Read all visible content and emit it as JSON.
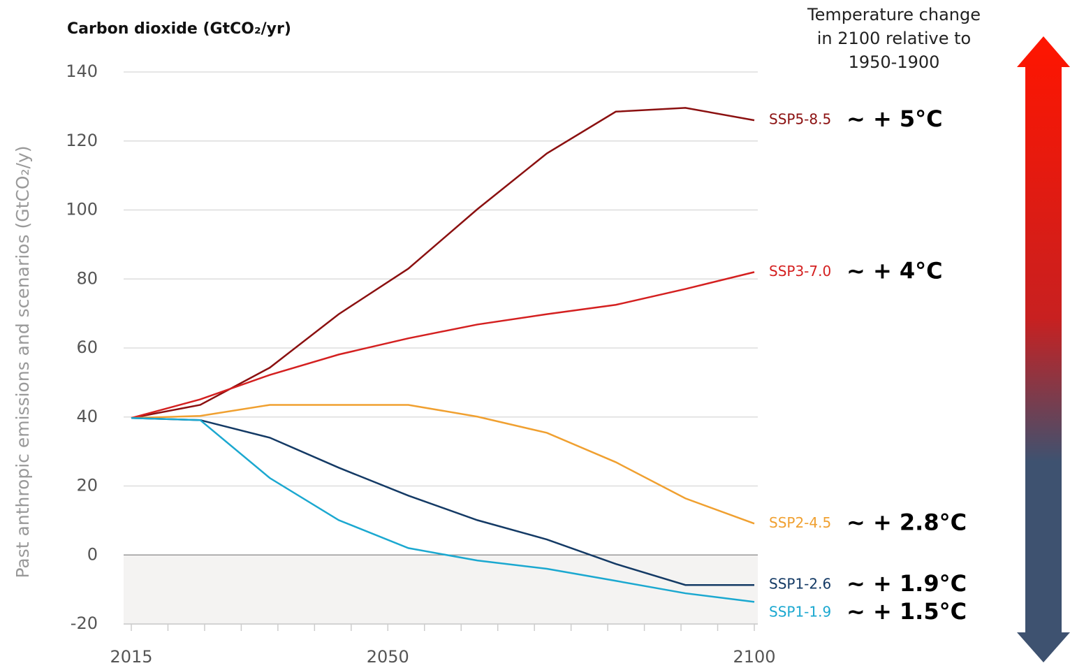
{
  "chart_data": {
    "type": "line",
    "title": "Carbon dioxide (GtCO₂/yr)",
    "y_label": "Past anthropic emissions and scenarios (GtCO₂/y)",
    "legend_title": [
      "Temperature change",
      "in 2100 relative to",
      "1950-1900"
    ],
    "x": [
      2015,
      2024.4,
      2033.9,
      2043.3,
      2052.8,
      2062.2,
      2071.7,
      2081.1,
      2090.6,
      2100
    ],
    "xlim": [
      2015,
      2100
    ],
    "xticks": [
      2015,
      2050,
      2100
    ],
    "xminor_ticks": [
      2020,
      2025,
      2030,
      2035,
      2040,
      2045,
      2055,
      2060,
      2065,
      2070,
      2075,
      2080,
      2085,
      2090,
      2095
    ],
    "ylim": [
      -20,
      140
    ],
    "yticks": [
      -20,
      0,
      20,
      40,
      60,
      80,
      100,
      120,
      140
    ],
    "grid": true,
    "series": [
      {
        "name": "SSP5-8.5",
        "temperature": "~ + 5°C",
        "color": "#8b1010",
        "values": [
          39.7,
          43.5,
          54.3,
          69.8,
          83,
          100.2,
          116.4,
          128.5,
          129.6,
          126
        ]
      },
      {
        "name": "SSP3-7.0",
        "temperature": "~ + 4°C",
        "color": "#d42020",
        "values": [
          39.7,
          45.1,
          52.2,
          58.1,
          62.8,
          66.8,
          69.8,
          72.5,
          77.1,
          82
        ]
      },
      {
        "name": "SSP2-4.5",
        "temperature": "~ + 2.8°C",
        "color": "#f0a030",
        "values": [
          39.7,
          40.3,
          43.5,
          43.5,
          43.5,
          40.1,
          35.4,
          26.9,
          16.4,
          9.1
        ]
      },
      {
        "name": "SSP1-2.6",
        "temperature": "~ + 1.9°C",
        "color": "#143a65",
        "values": [
          39.7,
          39.1,
          34,
          25.3,
          17.2,
          10.1,
          4.5,
          -2.6,
          -8.7,
          -8.7
        ]
      },
      {
        "name": "SSP1-1.9",
        "temperature": "~ + 1.5°C",
        "color": "#1ba8d0",
        "values": [
          39.7,
          39.1,
          22.3,
          10.1,
          2,
          -1.6,
          -4,
          -7.5,
          -11.1,
          -13.6
        ]
      }
    ]
  }
}
